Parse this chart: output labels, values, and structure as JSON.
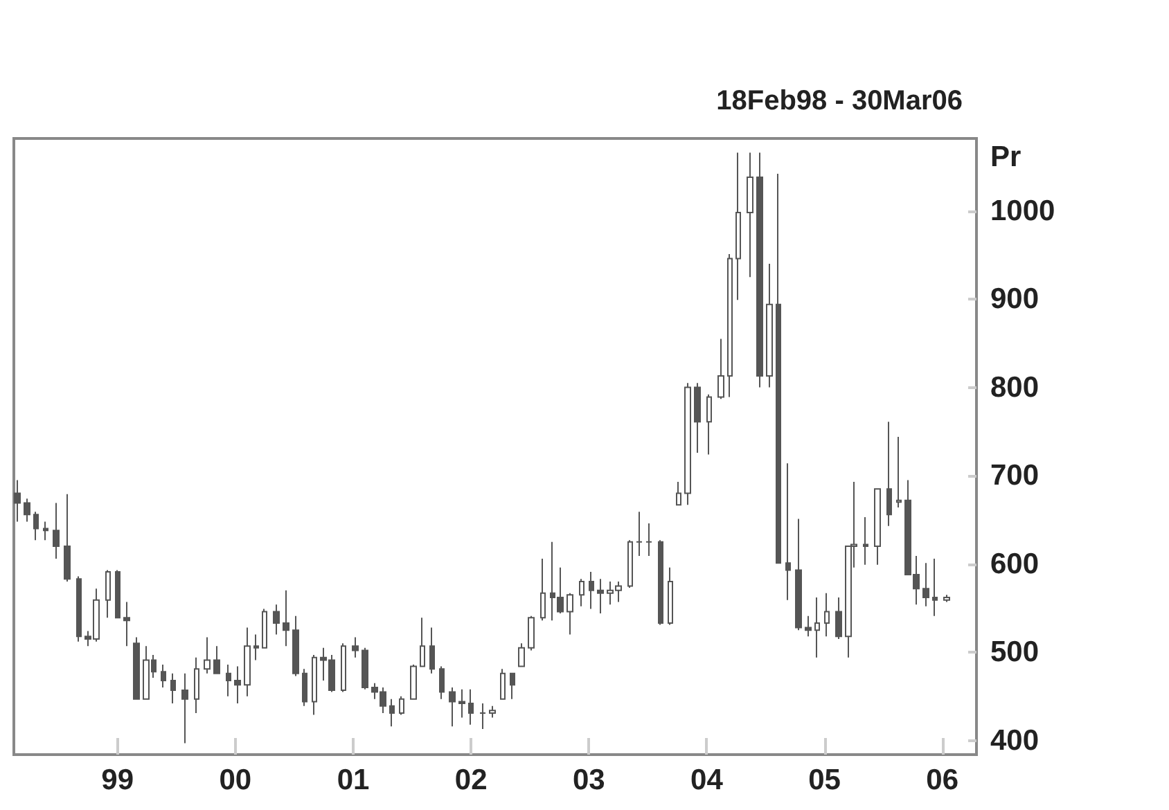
{
  "chart_data": {
    "type": "candlestick",
    "title": "18Feb98 - 30Mar06",
    "ylabel": "Pr",
    "x": [
      1998.15,
      1998.23,
      1998.31,
      1998.39,
      1998.48,
      1998.57,
      1998.67,
      1998.75,
      1998.82,
      1998.92,
      1999.0,
      1999.08,
      1999.16,
      1999.24,
      1999.31,
      1999.39,
      1999.47,
      1999.57,
      1999.67,
      1999.76,
      1999.84,
      1999.94,
      2000.02,
      2000.1,
      2000.18,
      2000.25,
      2000.35,
      2000.43,
      2000.51,
      2000.59,
      2000.67,
      2000.75,
      2000.82,
      2000.92,
      2001.02,
      2001.1,
      2001.18,
      2001.25,
      2001.33,
      2001.41,
      2001.51,
      2001.59,
      2001.67,
      2001.75,
      2001.84,
      2001.92,
      2002.0,
      2002.1,
      2002.18,
      2002.27,
      2002.35,
      2002.43,
      2002.51,
      2002.61,
      2002.69,
      2002.76,
      2002.84,
      2002.94,
      2003.02,
      2003.1,
      2003.18,
      2003.25,
      2003.35,
      2003.43,
      2003.51,
      2003.61,
      2003.69,
      2003.76,
      2003.84,
      2003.92,
      2004.02,
      2004.12,
      2004.2,
      2004.27,
      2004.37,
      2004.45,
      2004.53,
      2004.61,
      2004.69,
      2004.78,
      2004.86,
      2004.94,
      2005.02,
      2005.12,
      2005.2,
      2005.25,
      2005.35,
      2005.45,
      2005.55,
      2005.63,
      2005.71,
      2005.78,
      2005.86,
      2005.94,
      2006.04
    ],
    "ohlc": [
      [
        680,
        695,
        648,
        669
      ],
      [
        669,
        674,
        648,
        656
      ],
      [
        656,
        659,
        627,
        640
      ],
      [
        640,
        648,
        627,
        638
      ],
      [
        638,
        669,
        606,
        620
      ],
      [
        620,
        679,
        580,
        583
      ],
      [
        583,
        586,
        512,
        518
      ],
      [
        518,
        524,
        507,
        515
      ],
      [
        515,
        572,
        512,
        559
      ],
      [
        559,
        593,
        539,
        591
      ],
      [
        591,
        593,
        539,
        539
      ],
      [
        539,
        557,
        507,
        536
      ],
      [
        510,
        517,
        447,
        447
      ],
      [
        447,
        507,
        447,
        491
      ],
      [
        491,
        497,
        471,
        478
      ],
      [
        478,
        486,
        460,
        468
      ],
      [
        468,
        476,
        442,
        457
      ],
      [
        457,
        476,
        397,
        447
      ],
      [
        447,
        494,
        431,
        481
      ],
      [
        481,
        517,
        476,
        491
      ],
      [
        491,
        507,
        476,
        476
      ],
      [
        476,
        486,
        450,
        468
      ],
      [
        468,
        484,
        442,
        463
      ],
      [
        463,
        528,
        450,
        507
      ],
      [
        507,
        520,
        491,
        505
      ],
      [
        505,
        549,
        505,
        546
      ],
      [
        546,
        554,
        520,
        533
      ],
      [
        533,
        570,
        507,
        525
      ],
      [
        525,
        541,
        473,
        476
      ],
      [
        476,
        481,
        439,
        444
      ],
      [
        444,
        497,
        429,
        494
      ],
      [
        494,
        505,
        468,
        491
      ],
      [
        491,
        497,
        455,
        457
      ],
      [
        457,
        510,
        455,
        507
      ],
      [
        507,
        517,
        494,
        502
      ],
      [
        502,
        505,
        458,
        460
      ],
      [
        460,
        465,
        447,
        455
      ],
      [
        455,
        460,
        431,
        439
      ],
      [
        439,
        447,
        416,
        431
      ],
      [
        431,
        450,
        429,
        447
      ],
      [
        447,
        486,
        447,
        484
      ],
      [
        484,
        539,
        484,
        507
      ],
      [
        507,
        528,
        476,
        481
      ],
      [
        481,
        484,
        447,
        455
      ],
      [
        455,
        460,
        416,
        444
      ],
      [
        444,
        458,
        426,
        442
      ],
      [
        442,
        458,
        418,
        431
      ],
      [
        431,
        442,
        413,
        431
      ],
      [
        431,
        439,
        426,
        434
      ],
      [
        447,
        481,
        447,
        476
      ],
      [
        476,
        476,
        447,
        463
      ],
      [
        484,
        510,
        484,
        505
      ],
      [
        505,
        541,
        502,
        539
      ],
      [
        539,
        606,
        536,
        567
      ],
      [
        567,
        625,
        536,
        562
      ],
      [
        562,
        596,
        544,
        546
      ],
      [
        546,
        567,
        520,
        565
      ],
      [
        565,
        583,
        552,
        580
      ],
      [
        580,
        591,
        549,
        570
      ],
      [
        570,
        583,
        544,
        567
      ],
      [
        567,
        580,
        554,
        570
      ],
      [
        570,
        580,
        557,
        575
      ],
      [
        575,
        627,
        573,
        625
      ],
      [
        625,
        659,
        609,
        625
      ],
      [
        625,
        646,
        609,
        625
      ],
      [
        625,
        627,
        531,
        533
      ],
      [
        533,
        596,
        531,
        580
      ],
      [
        667,
        693,
        667,
        680
      ],
      [
        680,
        805,
        667,
        800
      ],
      [
        800,
        805,
        726,
        761
      ],
      [
        761,
        792,
        724,
        789
      ],
      [
        789,
        855,
        787,
        813
      ],
      [
        813,
        951,
        789,
        946
      ],
      [
        946,
        1066,
        899,
        998
      ],
      [
        998,
        1066,
        925,
        1038
      ],
      [
        1038,
        1066,
        800,
        813
      ],
      [
        813,
        940,
        800,
        894
      ],
      [
        894,
        1042,
        601,
        601
      ],
      [
        601,
        714,
        559,
        593
      ],
      [
        593,
        651,
        525,
        528
      ],
      [
        528,
        541,
        518,
        525
      ],
      [
        525,
        562,
        494,
        533
      ],
      [
        533,
        567,
        518,
        546
      ],
      [
        546,
        562,
        515,
        518
      ],
      [
        518,
        620,
        494,
        620
      ],
      [
        620,
        693,
        596,
        622
      ],
      [
        622,
        653,
        599,
        620
      ],
      [
        620,
        685,
        599,
        685
      ],
      [
        685,
        761,
        643,
        656
      ],
      [
        670,
        744,
        664,
        672
      ],
      [
        672,
        695,
        588,
        588
      ],
      [
        588,
        609,
        554,
        572
      ],
      [
        572,
        601,
        552,
        562
      ],
      [
        562,
        606,
        541,
        559
      ],
      [
        559,
        565,
        557,
        562
      ]
    ],
    "color": "#555555",
    "xlim": [
      1998.12,
      2006.29
    ],
    "xticks": [
      {
        "value": 1999,
        "label": "99"
      },
      {
        "value": 2000,
        "label": "00"
      },
      {
        "value": 2001,
        "label": "01"
      },
      {
        "value": 2002,
        "label": "02"
      },
      {
        "value": 2003,
        "label": "03"
      },
      {
        "value": 2004,
        "label": "04"
      },
      {
        "value": 2005,
        "label": "05"
      },
      {
        "value": 2006,
        "label": "06"
      }
    ],
    "ylim": [
      384,
      1082
    ],
    "yticks": [
      400,
      500,
      600,
      700,
      800,
      900,
      1000
    ]
  }
}
